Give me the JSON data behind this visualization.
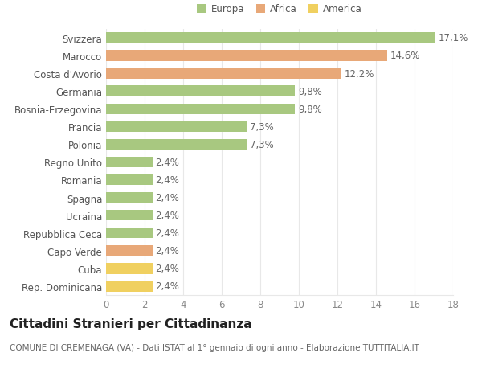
{
  "categories": [
    "Rep. Dominicana",
    "Cuba",
    "Capo Verde",
    "Repubblica Ceca",
    "Ucraina",
    "Spagna",
    "Romania",
    "Regno Unito",
    "Polonia",
    "Francia",
    "Bosnia-Erzegovina",
    "Germania",
    "Costa d'Avorio",
    "Marocco",
    "Svizzera"
  ],
  "values": [
    2.4,
    2.4,
    2.4,
    2.4,
    2.4,
    2.4,
    2.4,
    2.4,
    7.3,
    7.3,
    9.8,
    9.8,
    12.2,
    14.6,
    17.1
  ],
  "labels": [
    "2,4%",
    "2,4%",
    "2,4%",
    "2,4%",
    "2,4%",
    "2,4%",
    "2,4%",
    "2,4%",
    "7,3%",
    "7,3%",
    "9,8%",
    "9,8%",
    "12,2%",
    "14,6%",
    "17,1%"
  ],
  "colors": [
    "#f0d060",
    "#f0d060",
    "#e8a878",
    "#a8c880",
    "#a8c880",
    "#a8c880",
    "#a8c880",
    "#a8c880",
    "#a8c880",
    "#a8c880",
    "#a8c880",
    "#a8c880",
    "#e8a878",
    "#e8a878",
    "#a8c880"
  ],
  "legend_labels": [
    "Europa",
    "Africa",
    "America"
  ],
  "legend_colors": [
    "#a8c880",
    "#e8a878",
    "#f0d060"
  ],
  "title": "Cittadini Stranieri per Cittadinanza",
  "subtitle": "COMUNE DI CREMENAGA (VA) - Dati ISTAT al 1° gennaio di ogni anno - Elaborazione TUTTITALIA.IT",
  "xlim": [
    0,
    18
  ],
  "xticks": [
    0,
    2,
    4,
    6,
    8,
    10,
    12,
    14,
    16,
    18
  ],
  "bg_color": "#ffffff",
  "grid_color": "#e8e8e8",
  "bar_height": 0.6,
  "label_fontsize": 8.5,
  "tick_fontsize": 8.5,
  "title_fontsize": 11,
  "subtitle_fontsize": 7.5
}
